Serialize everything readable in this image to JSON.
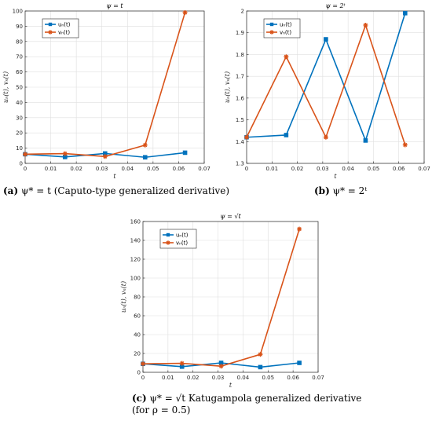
{
  "captions": [
    {
      "letter": "(a)",
      "text": "ψ* = t (Caputo-type generalized derivative)"
    },
    {
      "letter": "(b)",
      "text": "ψ* = 2ᵗ"
    },
    {
      "letter": "(c)",
      "text": "ψ* = √t Katugampola generalized derivative",
      "line2": "(for ρ = 0.5)"
    }
  ],
  "chart_data": [
    {
      "type": "line",
      "title": "ψ = t",
      "xlabel": "t",
      "ylabel": "uₙ(t), vₙ(t)",
      "xlim": [
        0,
        0.07
      ],
      "ylim": [
        0,
        100
      ],
      "xticks": [
        "0",
        "0.01",
        "0.02",
        "0.03",
        "0.04",
        "0.05",
        "0.06",
        "0.07"
      ],
      "yticks": [
        "0",
        "10",
        "20",
        "30",
        "40",
        "50",
        "60",
        "70",
        "80",
        "90",
        "100"
      ],
      "grid": true,
      "legend": "top-left",
      "x": [
        0,
        0.0156,
        0.03125,
        0.0469,
        0.0625
      ],
      "series": [
        {
          "name": "uₙ(t)",
          "color": "#0072BD",
          "marker": "square",
          "values": [
            6,
            4.2,
            6.5,
            4,
            7
          ]
        },
        {
          "name": "vₙ(t)",
          "color": "#D95319",
          "marker": "star",
          "values": [
            6,
            6.4,
            4.5,
            12,
            99
          ]
        }
      ]
    },
    {
      "type": "line",
      "title": "ψ = 2ᵗ",
      "xlabel": "t",
      "ylabel": "uₙ(t), vₙ(t)",
      "xlim": [
        0,
        0.07
      ],
      "ylim": [
        1.3,
        2
      ],
      "xticks": [
        "0",
        "0.01",
        "0.02",
        "0.03",
        "0.04",
        "0.05",
        "0.06",
        "0.07"
      ],
      "yticks": [
        "1.3",
        "1.4",
        "1.5",
        "1.6",
        "1.7",
        "1.8",
        "1.9",
        "2"
      ],
      "grid": true,
      "legend": "top-left",
      "x": [
        0,
        0.0156,
        0.03125,
        0.0469,
        0.0625
      ],
      "series": [
        {
          "name": "uₙ(t)",
          "color": "#0072BD",
          "marker": "square",
          "values": [
            1.42,
            1.43,
            1.87,
            1.405,
            1.99
          ]
        },
        {
          "name": "vₙ(t)",
          "color": "#D95319",
          "marker": "star",
          "values": [
            1.42,
            1.79,
            1.42,
            1.935,
            1.385
          ]
        }
      ]
    },
    {
      "type": "line",
      "title": "ψ = √t",
      "xlabel": "t",
      "ylabel": "uₙ(t), vₙ(t)",
      "xlim": [
        0,
        0.07
      ],
      "ylim": [
        0,
        160
      ],
      "xticks": [
        "0",
        "0.01",
        "0.02",
        "0.03",
        "0.04",
        "0.05",
        "0.06",
        "0.07"
      ],
      "yticks": [
        "0",
        "20",
        "40",
        "60",
        "80",
        "100",
        "120",
        "140",
        "160"
      ],
      "grid": true,
      "legend": "top-left",
      "x": [
        0,
        0.0156,
        0.03125,
        0.0469,
        0.0625
      ],
      "series": [
        {
          "name": "uₙ(t)",
          "color": "#0072BD",
          "marker": "square",
          "values": [
            9,
            6,
            10,
            5.5,
            10
          ]
        },
        {
          "name": "vₙ(t)",
          "color": "#D95319",
          "marker": "star",
          "values": [
            9,
            9.5,
            6.5,
            19,
            152
          ]
        }
      ]
    }
  ]
}
